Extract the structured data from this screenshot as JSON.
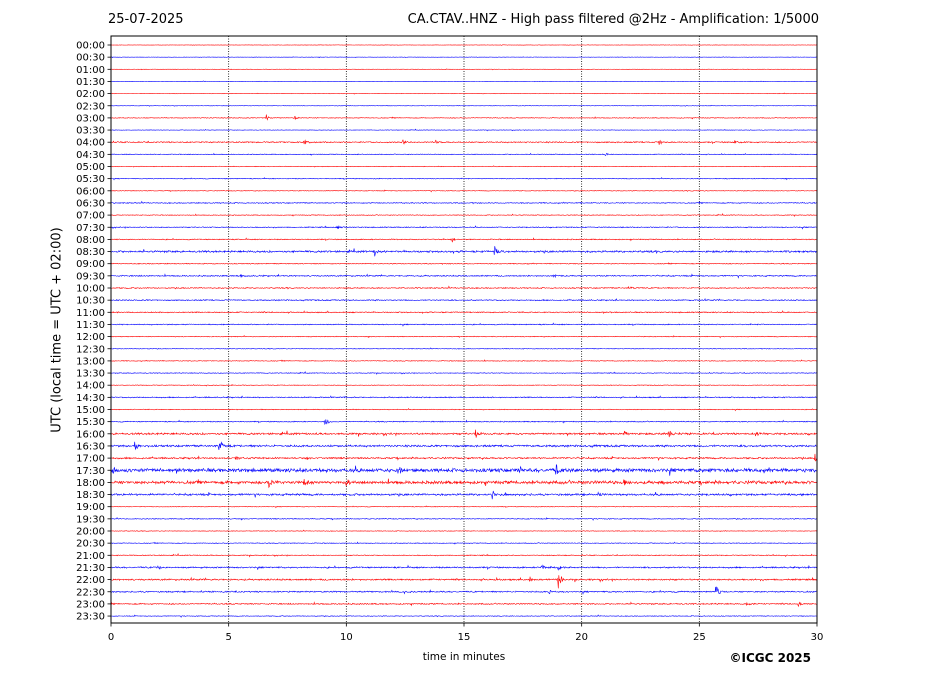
{
  "header": {
    "date": "25-07-2025",
    "title": "CA.CTAV..HNZ - High pass filtered @2Hz - Amplification: 1/5000"
  },
  "footer": {
    "copyright": "©ICGC 2025"
  },
  "colors": {
    "even_row": "#ff0000",
    "odd_row": "#0000ff",
    "grid": "#000000"
  },
  "chart_data": {
    "type": "line",
    "xlabel": "time in minutes",
    "ylabel": "UTC (local time = UTC + 02:00)",
    "xlim": [
      0,
      30
    ],
    "xticks": [
      0,
      5,
      10,
      15,
      20,
      25,
      30
    ],
    "grid": "vertical dotted lines at x ticks",
    "rows": [
      "00:00",
      "00:30",
      "01:00",
      "01:30",
      "02:00",
      "02:30",
      "03:00",
      "03:30",
      "04:00",
      "04:30",
      "05:00",
      "05:30",
      "06:00",
      "06:30",
      "07:00",
      "07:30",
      "08:00",
      "08:30",
      "09:00",
      "09:30",
      "10:00",
      "10:30",
      "11:00",
      "11:30",
      "12:00",
      "12:30",
      "13:00",
      "13:30",
      "14:00",
      "14:30",
      "15:00",
      "15:30",
      "16:00",
      "16:30",
      "17:00",
      "17:30",
      "18:00",
      "18:30",
      "19:00",
      "19:30",
      "20:00",
      "20:30",
      "21:00",
      "21:30",
      "22:00",
      "22:30",
      "23:00",
      "23:30"
    ],
    "row_colors": "alternating red / blue starting with red at 00:00",
    "noise_level": [
      0.3,
      0.3,
      0.3,
      0.3,
      0.3,
      0.3,
      0.6,
      0.4,
      1.0,
      0.6,
      0.5,
      0.6,
      0.5,
      0.8,
      0.6,
      0.8,
      0.8,
      1.5,
      0.7,
      1.0,
      0.9,
      0.9,
      0.9,
      0.8,
      0.6,
      0.5,
      0.6,
      0.6,
      0.5,
      0.9,
      0.6,
      0.8,
      1.5,
      1.6,
      1.3,
      3.0,
      2.5,
      1.6,
      0.5,
      0.7,
      0.5,
      0.6,
      0.7,
      1.2,
      1.3,
      1.1,
      1.0,
      0.6
    ],
    "events": [
      {
        "row": "03:00",
        "t": 6.6,
        "amp": 4
      },
      {
        "row": "03:00",
        "t": 7.8,
        "amp": 3
      },
      {
        "row": "04:00",
        "t": 8.2,
        "amp": 4
      },
      {
        "row": "04:00",
        "t": 12.4,
        "amp": 4
      },
      {
        "row": "04:00",
        "t": 13.8,
        "amp": 3
      },
      {
        "row": "04:00",
        "t": 23.3,
        "amp": 3
      },
      {
        "row": "04:00",
        "t": 26.5,
        "amp": 3
      },
      {
        "row": "04:30",
        "t": 21.0,
        "amp": 2
      },
      {
        "row": "07:30",
        "t": 9.6,
        "amp": 3
      },
      {
        "row": "08:00",
        "t": 14.5,
        "amp": 3
      },
      {
        "row": "08:30",
        "t": 11.2,
        "amp": 5
      },
      {
        "row": "08:30",
        "t": 16.3,
        "amp": 7
      },
      {
        "row": "09:30",
        "t": 5.5,
        "amp": 3
      },
      {
        "row": "09:30",
        "t": 18.8,
        "amp": 3
      },
      {
        "row": "10:00",
        "t": 22.0,
        "amp": 3
      },
      {
        "row": "15:30",
        "t": 9.1,
        "amp": 6
      },
      {
        "row": "16:00",
        "t": 15.5,
        "amp": 6
      },
      {
        "row": "16:00",
        "t": 21.8,
        "amp": 4
      },
      {
        "row": "16:00",
        "t": 23.7,
        "amp": 6
      },
      {
        "row": "16:00",
        "t": 27.4,
        "amp": 5
      },
      {
        "row": "16:30",
        "t": 1.0,
        "amp": 7
      },
      {
        "row": "16:30",
        "t": 4.6,
        "amp": 9
      },
      {
        "row": "17:00",
        "t": 5.3,
        "amp": 4
      },
      {
        "row": "17:00",
        "t": 29.9,
        "amp": 7
      },
      {
        "row": "17:30",
        "t": 0.1,
        "amp": 7
      },
      {
        "row": "17:30",
        "t": 12.2,
        "amp": 5
      },
      {
        "row": "17:30",
        "t": 17.3,
        "amp": 5
      },
      {
        "row": "17:30",
        "t": 18.9,
        "amp": 7
      },
      {
        "row": "17:30",
        "t": 25.4,
        "amp": 5
      },
      {
        "row": "18:00",
        "t": 6.7,
        "amp": 7
      },
      {
        "row": "18:00",
        "t": 8.2,
        "amp": 5
      },
      {
        "row": "18:00",
        "t": 10.0,
        "amp": 4
      },
      {
        "row": "18:00",
        "t": 21.8,
        "amp": 5
      },
      {
        "row": "18:00",
        "t": 23.4,
        "amp": 4
      },
      {
        "row": "18:30",
        "t": 16.2,
        "amp": 6
      },
      {
        "row": "18:30",
        "t": 20.7,
        "amp": 3
      },
      {
        "row": "21:30",
        "t": 2.0,
        "amp": 5
      },
      {
        "row": "21:30",
        "t": 18.3,
        "amp": 3
      },
      {
        "row": "21:30",
        "t": 19.0,
        "amp": 4
      },
      {
        "row": "22:00",
        "t": 17.8,
        "amp": 3
      },
      {
        "row": "22:00",
        "t": 19.0,
        "amp": 10
      },
      {
        "row": "22:30",
        "t": 25.7,
        "amp": 8
      },
      {
        "row": "22:30",
        "t": 18.6,
        "amp": 3
      },
      {
        "row": "23:00",
        "t": 27.0,
        "amp": 3
      },
      {
        "row": "23:00",
        "t": 29.2,
        "amp": 3
      }
    ]
  }
}
